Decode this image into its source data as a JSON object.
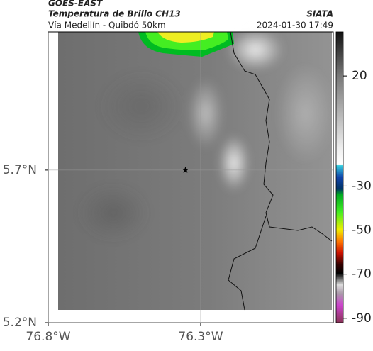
{
  "header": {
    "source": "GOES-EAST",
    "title": "Temperatura de Brillo CH13",
    "brand": "SIATA",
    "subtitle": "Vía Medellín - Quibdó 50km",
    "timestamp": "2024-01-30 17:49"
  },
  "map": {
    "xlim": [
      -76.8,
      -75.865
    ],
    "ylim": [
      5.2,
      6.153
    ],
    "xticks": [
      {
        "value": -76.8,
        "label": "76.8°W"
      },
      {
        "value": -76.3,
        "label": "76.3°W"
      }
    ],
    "yticks": [
      {
        "value": 5.2,
        "label": "5.2°N"
      },
      {
        "value": 5.7,
        "label": "5.7°N"
      }
    ],
    "marker": {
      "lon": -76.35,
      "lat": 5.7
    }
  },
  "colorbar": {
    "lim": [
      -92,
      40
    ],
    "ticks": [
      20,
      -30,
      -50,
      -70,
      -90
    ]
  }
}
